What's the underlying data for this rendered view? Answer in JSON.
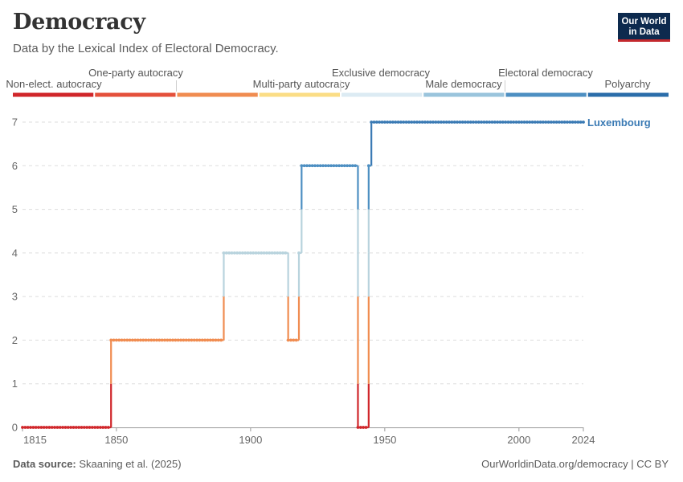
{
  "header": {
    "title": "Democracy",
    "subtitle": "Data by the Lexical Index of Electoral Democracy.",
    "logo_line1": "Our World",
    "logo_line2": "in Data"
  },
  "footer": {
    "source_label": "Data source:",
    "source_text": "Skaaning et al. (2025)",
    "url": "OurWorldinData.org/democracy | CC BY"
  },
  "chart_data": {
    "type": "line",
    "xlim": [
      1815,
      2024
    ],
    "ylim": [
      0,
      7
    ],
    "x_ticks": [
      1815,
      1850,
      1900,
      1950,
      2000,
      2024
    ],
    "y_ticks": [
      0,
      1,
      2,
      3,
      4,
      5,
      6,
      7
    ],
    "grid": "horizontal dashed",
    "series": [
      {
        "name": "Luxembourg",
        "color": "#3a7ab4",
        "x": [
          1815,
          1847,
          1848,
          1889,
          1890,
          1913,
          1914,
          1917,
          1918,
          1919,
          1920,
          1939,
          1940,
          1943,
          1944,
          1945,
          2024
        ],
        "y": [
          0,
          0,
          2,
          2,
          4,
          4,
          2,
          2,
          4,
          6,
          6,
          6,
          0,
          0,
          6,
          7,
          7
        ]
      }
    ],
    "legend": {
      "placement": "top color scale",
      "categories": [
        {
          "label": "Non-elect. autocracy",
          "color": "#d0262a"
        },
        {
          "label": "One-party autocracy",
          "color": "#e4503b"
        },
        {
          "label": "Multi-party autocracy",
          "color": "#f08c50"
        },
        {
          "label": "Exclusive democracy",
          "color": "#fbdd85"
        },
        {
          "label": "Male democracy",
          "color": "#dcebf3"
        },
        {
          "label": "Electoral democracy",
          "color": "#9ac4dc"
        },
        {
          "label": "Polyarchy",
          "color": "#4d8fc2"
        },
        {
          "label": "",
          "color": "#2b6daa"
        }
      ]
    },
    "value_colors": [
      "#d0262a",
      "#d0262a",
      "#f08c50",
      "#f08c50",
      "#b8d3dd",
      "#b8d3dd",
      "#4d8fc2",
      "#3a7ab4"
    ]
  }
}
